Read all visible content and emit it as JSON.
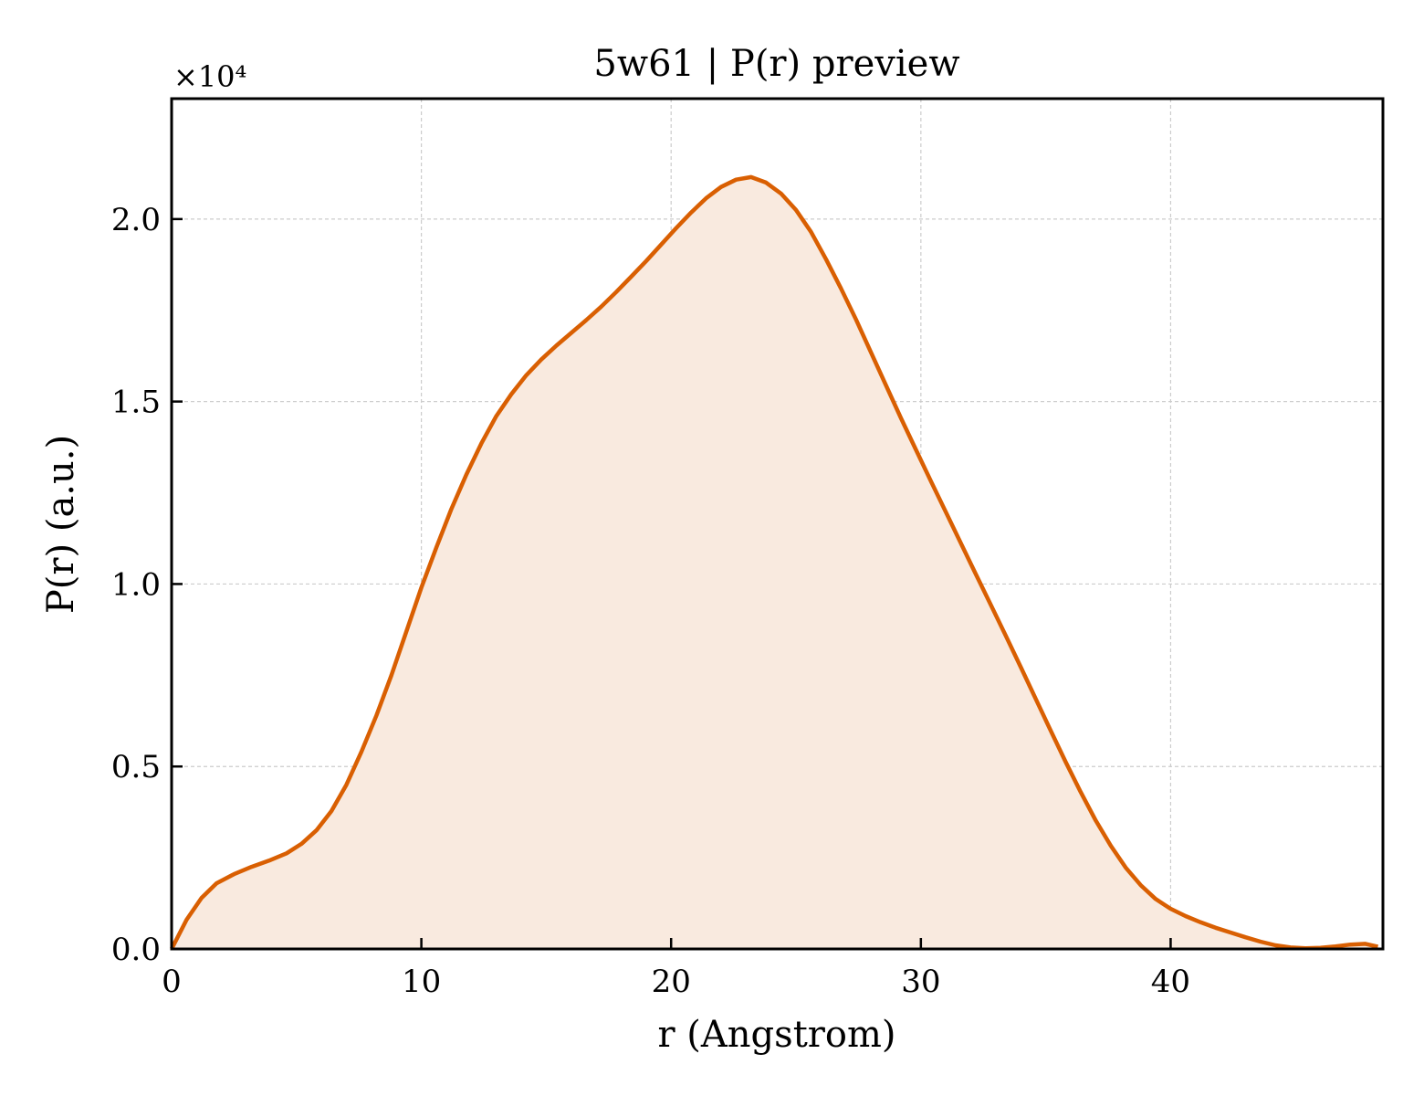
{
  "chart_data": {
    "type": "area",
    "title": "5w61 | P(r) preview",
    "xlabel": "r (Angstrom)",
    "ylabel": "P(r) (a.u.)",
    "y_multiplier_label": "×10⁴",
    "xlim": [
      0,
      48.5
    ],
    "ylim": [
      0,
      2.33
    ],
    "x_ticks": [
      0,
      10,
      20,
      30,
      40
    ],
    "x_tick_labels": [
      "0",
      "10",
      "20",
      "30",
      "40"
    ],
    "y_ticks": [
      0,
      0.5,
      1.0,
      1.5,
      2.0
    ],
    "y_tick_labels": [
      "0.0",
      "0.5",
      "1.0",
      "1.5",
      "2.0"
    ],
    "grid": true,
    "line_color": "#d95f02",
    "fill_color": "#f9eadf",
    "series": [
      {
        "x": [
          0,
          0.6,
          1.2,
          1.8,
          2.5,
          3.2,
          3.9,
          4.6,
          5.2,
          5.8,
          6.4,
          7.0,
          7.6,
          8.2,
          8.8,
          9.4,
          10.0,
          10.6,
          11.2,
          11.8,
          12.4,
          13.0,
          13.6,
          14.2,
          14.8,
          15.4,
          16.0,
          16.6,
          17.2,
          17.8,
          18.4,
          19.0,
          19.6,
          20.2,
          20.8,
          21.4,
          22.0,
          22.6,
          23.2,
          23.8,
          24.4,
          25.0,
          25.6,
          26.2,
          26.8,
          27.4,
          28.0,
          28.6,
          29.2,
          29.8,
          30.4,
          31.0,
          31.6,
          32.2,
          32.8,
          33.4,
          34.0,
          34.6,
          35.2,
          35.8,
          36.4,
          37.0,
          37.6,
          38.2,
          38.8,
          39.4,
          40.0,
          40.6,
          41.2,
          41.8,
          42.4,
          43.0,
          43.6,
          44.2,
          44.8,
          45.4,
          46.0,
          46.6,
          47.2,
          47.8,
          48.3
        ],
        "values": [
          0.0,
          0.08,
          0.14,
          0.18,
          0.205,
          0.225,
          0.242,
          0.262,
          0.288,
          0.325,
          0.378,
          0.45,
          0.54,
          0.64,
          0.75,
          0.87,
          0.99,
          1.1,
          1.205,
          1.3,
          1.385,
          1.46,
          1.52,
          1.572,
          1.615,
          1.653,
          1.688,
          1.723,
          1.76,
          1.8,
          1.842,
          1.885,
          1.93,
          1.975,
          2.018,
          2.057,
          2.088,
          2.108,
          2.115,
          2.1,
          2.07,
          2.025,
          1.965,
          1.89,
          1.81,
          1.725,
          1.635,
          1.545,
          1.455,
          1.368,
          1.282,
          1.197,
          1.112,
          1.027,
          0.943,
          0.858,
          0.772,
          0.685,
          0.598,
          0.512,
          0.43,
          0.352,
          0.283,
          0.223,
          0.175,
          0.137,
          0.11,
          0.09,
          0.073,
          0.058,
          0.045,
          0.032,
          0.02,
          0.01,
          0.004,
          0.002,
          0.003,
          0.007,
          0.012,
          0.014,
          0.006
        ]
      }
    ]
  }
}
